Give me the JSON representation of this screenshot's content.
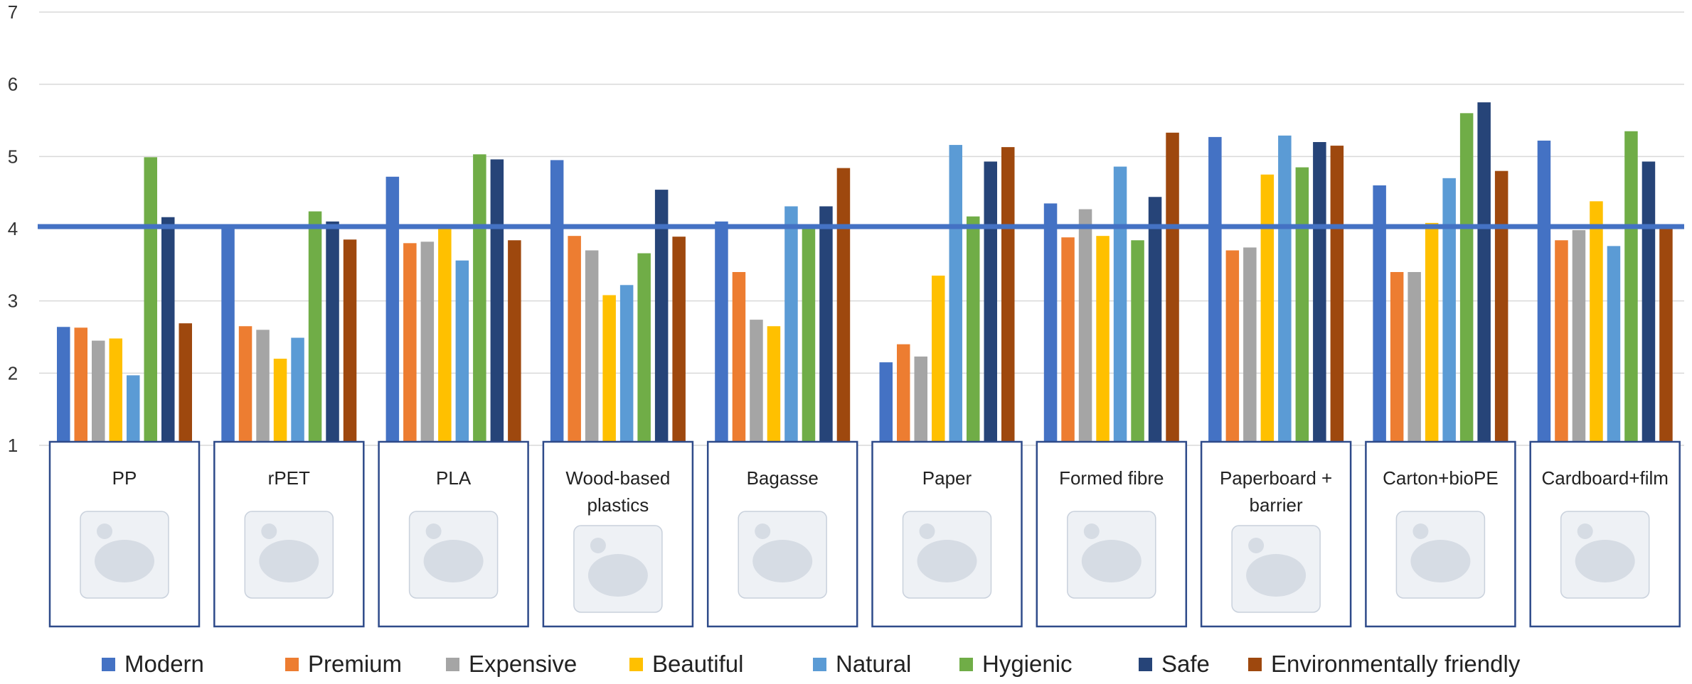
{
  "chart_data": {
    "type": "bar",
    "ylim": [
      1,
      7
    ],
    "yticks": [
      "1",
      "2",
      "3",
      "4",
      "5",
      "6",
      "7"
    ],
    "grid": true,
    "legend_position": "bottom",
    "reference_line": {
      "value": 4.03,
      "color": "#4472C4"
    },
    "categories": [
      {
        "label": [
          "PP"
        ],
        "icon": "pp-cup-photo"
      },
      {
        "label": [
          "rPET"
        ],
        "icon": "rpet-clamshell-photo"
      },
      {
        "label": [
          "PLA"
        ],
        "icon": "pla-drink-cup-photo"
      },
      {
        "label": [
          "Wood-based",
          "plastics"
        ],
        "icon": "wood-based-tray-photo"
      },
      {
        "label": [
          "Bagasse"
        ],
        "icon": "bagasse-box-photo"
      },
      {
        "label": [
          "Paper"
        ],
        "icon": "paper-bag-photo"
      },
      {
        "label": [
          "Formed fibre"
        ],
        "icon": "formed-fibre-bowl-photo"
      },
      {
        "label": [
          "Paperboard +",
          "barrier"
        ],
        "icon": "paperboard-box-photo"
      },
      {
        "label": [
          "Carton+bioPE"
        ],
        "icon": "carton-photo"
      },
      {
        "label": [
          "Cardboard+film"
        ],
        "icon": "cardboard-film-tray-photo"
      }
    ],
    "series": [
      {
        "name": "Modern",
        "color": "#4472C4",
        "values": [
          2.64,
          4.05,
          4.72,
          4.95,
          4.1,
          2.15,
          4.35,
          5.27,
          4.6,
          5.22
        ]
      },
      {
        "name": "Premium",
        "color": "#ED7D31",
        "values": [
          2.63,
          2.65,
          3.8,
          3.9,
          3.4,
          2.4,
          3.88,
          3.7,
          3.4,
          3.84
        ]
      },
      {
        "name": "Expensive",
        "color": "#A5A5A5",
        "values": [
          2.45,
          2.6,
          3.82,
          3.7,
          2.74,
          2.23,
          4.27,
          3.74,
          3.4,
          3.98
        ]
      },
      {
        "name": "Beautiful",
        "color": "#FFC000",
        "values": [
          2.48,
          2.2,
          4.0,
          3.08,
          2.65,
          3.35,
          3.9,
          4.75,
          4.08,
          4.38
        ]
      },
      {
        "name": "Natural",
        "color": "#5B9BD5",
        "values": [
          1.97,
          2.49,
          3.56,
          3.22,
          4.31,
          5.16,
          4.86,
          5.29,
          4.7,
          3.76
        ]
      },
      {
        "name": "Hygienic",
        "color": "#70AD47",
        "values": [
          4.99,
          4.24,
          5.03,
          3.66,
          4.0,
          4.17,
          3.84,
          4.85,
          5.6,
          5.35
        ]
      },
      {
        "name": "Safe",
        "color": "#264478",
        "values": [
          4.16,
          4.1,
          4.96,
          4.54,
          4.31,
          4.93,
          4.44,
          5.2,
          5.75,
          4.93
        ]
      },
      {
        "name": "Environmentally friendly",
        "color": "#9E480E",
        "values": [
          2.69,
          3.85,
          3.84,
          3.89,
          4.84,
          5.13,
          5.33,
          5.15,
          4.8,
          4.0
        ]
      }
    ]
  }
}
